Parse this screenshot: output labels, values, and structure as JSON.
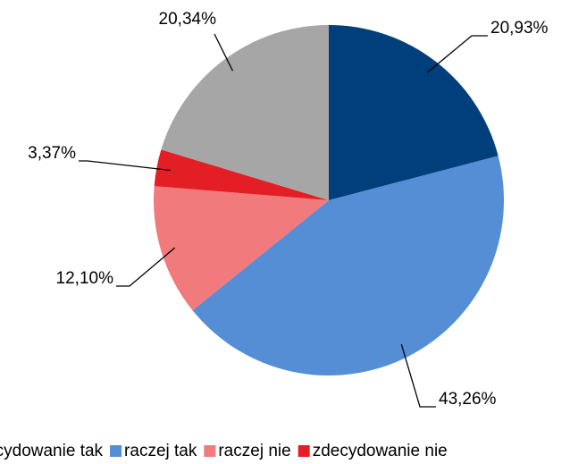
{
  "chart_data": {
    "type": "pie",
    "categories": [
      "zdecydowanie tak",
      "raczej tak",
      "raczej nie",
      "zdecydowanie nie",
      null
    ],
    "values": [
      20.93,
      43.26,
      12.1,
      3.37,
      20.34
    ],
    "value_labels": [
      "20,93%",
      "43,26%",
      "12,10%",
      "3,37%",
      "20,34%"
    ],
    "colors": [
      "#003f7b",
      "#558ed5",
      "#f17a7d",
      "#e31e25",
      "#a6a6a6"
    ],
    "legend": "bottom"
  }
}
